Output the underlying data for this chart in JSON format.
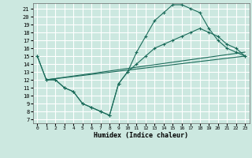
{
  "xlabel": "Humidex (Indice chaleur)",
  "background_color": "#cce8e0",
  "grid_color": "#ffffff",
  "line_color": "#1a6b5a",
  "xlim": [
    -0.5,
    23.5
  ],
  "ylim": [
    6.5,
    21.7
  ],
  "x_ticks": [
    0,
    1,
    2,
    3,
    4,
    5,
    6,
    7,
    8,
    9,
    10,
    11,
    12,
    13,
    14,
    15,
    16,
    17,
    18,
    19,
    20,
    21,
    22,
    23
  ],
  "y_ticks": [
    7,
    8,
    9,
    10,
    11,
    12,
    13,
    14,
    15,
    16,
    17,
    18,
    19,
    20,
    21
  ],
  "curve_x": [
    0,
    1,
    2,
    3,
    4,
    5,
    6,
    7,
    8,
    9,
    10,
    11,
    12,
    13,
    14,
    15,
    16,
    17,
    18,
    19,
    20,
    21,
    22,
    23
  ],
  "curve_y": [
    15,
    12,
    12,
    11,
    10.5,
    9,
    8.5,
    8,
    7.5,
    11.5,
    13,
    15.5,
    17.5,
    19.5,
    20.5,
    21.5,
    21.5,
    21,
    20.5,
    18.5,
    17,
    16,
    15.5,
    15
  ],
  "line2_x": [
    0,
    1,
    2,
    3,
    4,
    5,
    6,
    7,
    8,
    9,
    10,
    11,
    12,
    13,
    14,
    15,
    16,
    17,
    18,
    19,
    20,
    21,
    22,
    23
  ],
  "line2_y": [
    15,
    12,
    12,
    11,
    10.5,
    9,
    8.5,
    8,
    7.5,
    11.5,
    13,
    14,
    15,
    16,
    16.5,
    17,
    17.5,
    18,
    18.5,
    18,
    17.5,
    16.5,
    16,
    15
  ],
  "line3_x": [
    1,
    23
  ],
  "line3_y": [
    12,
    15
  ],
  "line4_x": [
    1,
    23
  ],
  "line4_y": [
    12,
    15
  ]
}
